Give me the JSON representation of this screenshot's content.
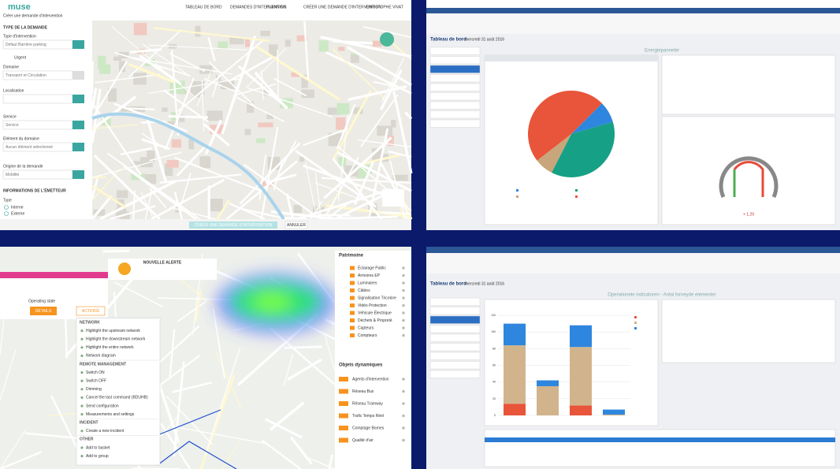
{
  "dispatch": {
    "logo": "muse",
    "nav": [
      "TABLEAU DE BORD",
      "DEMANDES D'INTERVENTION",
      "PLANNING",
      "CRÉER UNE DEMANDE D'INTERVENTION"
    ],
    "user": "CHRISTOPHE VIVAT",
    "page_title": "Créer une demande d'intervention",
    "section": "TYPE DE LA DEMANDE",
    "fields": [
      {
        "label": "Type d'intervention",
        "value": "Défaut Barrière parking"
      },
      {
        "label": "Domaine",
        "value": "Transport et Circulation"
      },
      {
        "label": "Localisation"
      },
      {
        "label": "Service",
        "value": "Service"
      },
      {
        "label": "Elément du domaine",
        "value": "Aucun élément sélectionné"
      },
      {
        "label": "Origine de la demande",
        "value": "Mobilité"
      }
    ],
    "urgent": "Urgent",
    "section2": "INFORMATIONS DE L'ÉMETTEUR",
    "type_label": "Type",
    "radios": [
      "Interne",
      "Externe"
    ],
    "submit": "CRÉER UNE DEMANDE D'INTERVENTION",
    "cancel": "ANNULER"
  },
  "dashboard": {
    "title": "Tableau de bord",
    "date": "mercredi 31 août 2016",
    "panel_top": "Energiepanneler",
    "panel_bottom": "Operationele indicatoren - Antal forneyde elementer",
    "gauge_value": "+ 1,29"
  },
  "supervision": {
    "alert": "NOUVELLE ALERTE",
    "details": "DÉTAILS",
    "actions": "ACTIONS",
    "state": "Operating state",
    "menu": [
      "NETWORK",
      "Highlight the upstream network",
      "Highlight the downstream network",
      "Highlight the entire network",
      "Network diagram",
      "REMOTE MANAGEMENT",
      "Switch ON",
      "Switch OFF",
      "Dimming",
      "Cancel the last command (BDUHB)",
      "Send configuration",
      "Measurements and settings",
      "INCIDENT",
      "Create a new incident",
      "OTHER",
      "Add to basket",
      "Add to group"
    ],
    "patrimoine": "Patrimoine",
    "assets": [
      "Éclairage Public",
      "Armoires EP",
      "Luminaires",
      "Câbles",
      "Signalisation Tricolore",
      "Vidéo Protection",
      "Véhicule Électrique",
      "Déchets & Propreté",
      "Capteurs",
      "Compteurs"
    ],
    "dynamic": "Objets dynamiques",
    "dynamic_items": [
      "Agents d'intervention",
      "Réseau Bus",
      "Réseau Tramway",
      "Trafic Temps Réel",
      "Comptage Bornes",
      "Qualité d'air"
    ]
  },
  "chart_data": [
    {
      "type": "pie",
      "values": [
        8,
        37,
        7,
        48
      ],
      "colors": [
        "#2e86de",
        "#16a085",
        "#c8a57a",
        "#e8553a"
      ]
    },
    {
      "type": "bar",
      "stacked": true,
      "series": [
        {
          "color": "#e8553a",
          "values": [
            14,
            0,
            12,
            0
          ]
        },
        {
          "color": "#d2b48c",
          "values": [
            70,
            35,
            70,
            1
          ]
        },
        {
          "color": "#2e86de",
          "values": [
            26,
            7,
            26,
            6
          ]
        }
      ],
      "ylim": [
        0,
        120
      ],
      "yticks": [
        0,
        20,
        40,
        60,
        80,
        100,
        120
      ],
      "grid": true
    }
  ]
}
